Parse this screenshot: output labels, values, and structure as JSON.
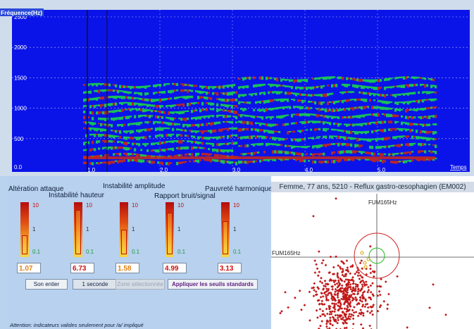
{
  "spectrogram": {
    "y_axis_title": "Fréquence(Hz)",
    "y_ticks": [
      "2500",
      "2000",
      "1500",
      "1000",
      "500",
      "0.0"
    ],
    "x_ticks": [
      "1.0",
      "2.0",
      "3.0",
      "4.0",
      "5.0"
    ],
    "x_axis_title": "Temps",
    "colors": {
      "background": "#0a14e8",
      "energy_low": "#19d14a",
      "energy_high": "#c8281a"
    }
  },
  "indicators": {
    "items": [
      {
        "label": "Altération attaque",
        "value": "1.07",
        "level": 0.38,
        "value_color": "#e08010"
      },
      {
        "label": "Instabilité hauteur",
        "value": "6.73",
        "level": 0.88,
        "value_color": "#d01010"
      },
      {
        "label": "Instabilité amplitude",
        "value": "1.58",
        "level": 0.48,
        "value_color": "#e08010"
      },
      {
        "label": "Rapport bruit/signal",
        "value": "4.99",
        "level": 0.82,
        "value_color": "#d01010"
      },
      {
        "label": "Pauvreté harmonique",
        "value": "3.13",
        "level": 0.65,
        "value_color": "#d01010"
      }
    ],
    "scale": {
      "top": "10",
      "middle": "1",
      "bottom": "0.1"
    }
  },
  "buttons": {
    "whole": "Son entier",
    "second": "1 seconde",
    "selected": "Zone sélectionnée",
    "apply": "Appliquer les seuils standards"
  },
  "note": "Attention: indicateurs valides seulement pour  /a/ impliqué",
  "scatter": {
    "header": "Femme, 77 ans, 5210 -  Reflux gastro-œsophagien (EM002)",
    "axis_x_label": "FUM165Hz",
    "axis_y_label": "FUM165Hz",
    "colors": {
      "point": "#c01818",
      "outer_circle": "#d02020",
      "inner_circle": "#22bb22"
    }
  }
}
